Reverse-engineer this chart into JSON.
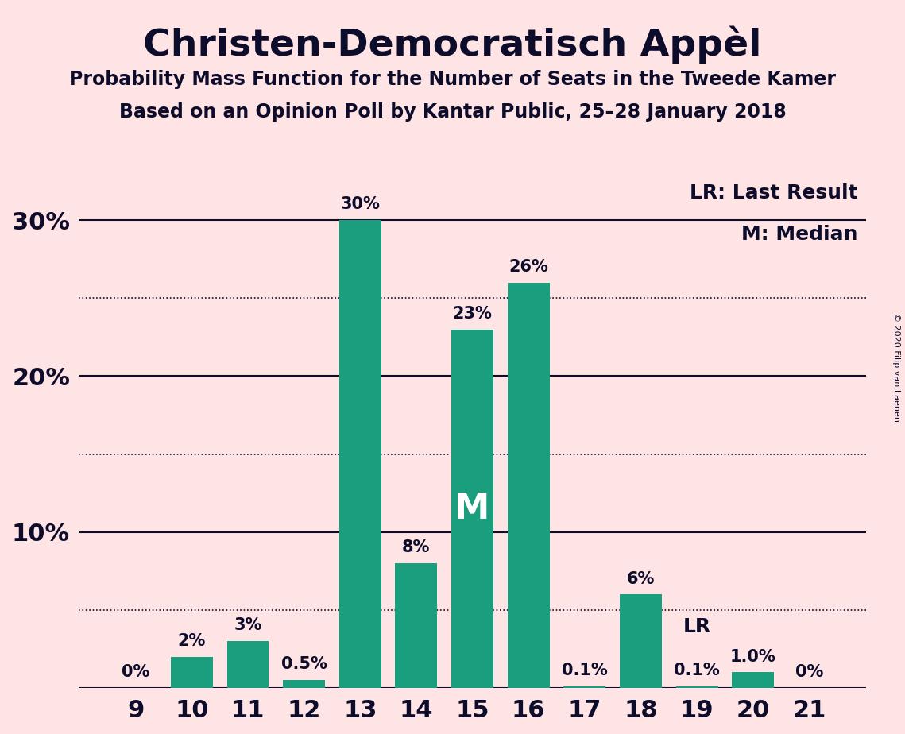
{
  "title": "Christen-Democratisch Appèl",
  "subtitle1": "Probability Mass Function for the Number of Seats in the Tweede Kamer",
  "subtitle2": "Based on an Opinion Poll by Kantar Public, 25–28 January 2018",
  "copyright": "© 2020 Filip van Laenen",
  "categories": [
    9,
    10,
    11,
    12,
    13,
    14,
    15,
    16,
    17,
    18,
    19,
    20,
    21
  ],
  "values": [
    0.0,
    2.0,
    3.0,
    0.5,
    30.0,
    8.0,
    23.0,
    26.0,
    0.1,
    6.0,
    0.1,
    1.0,
    0.0
  ],
  "labels": [
    "0%",
    "2%",
    "3%",
    "0.5%",
    "30%",
    "8%",
    "23%",
    "26%",
    "0.1%",
    "6%",
    "0.1%",
    "1.0%",
    "0%"
  ],
  "bar_color": "#1a9e7e",
  "background_color": "#FFE4E6",
  "text_color": "#0d0d2b",
  "median_seat": 15,
  "last_result_seat": 19,
  "ylim": [
    0,
    33
  ],
  "yticks": [
    10,
    20,
    30
  ],
  "ytick_labels": [
    "10%",
    "20%",
    "30%"
  ],
  "solid_lines": [
    0,
    10,
    20,
    30
  ],
  "dotted_lines": [
    5,
    15,
    25
  ],
  "legend_lr": "LR: Last Result",
  "legend_m": "M: Median"
}
